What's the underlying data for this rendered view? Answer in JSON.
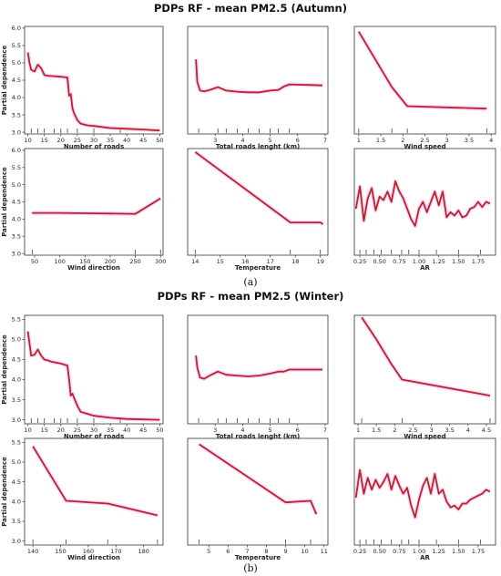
{
  "figure": {
    "title_a": "PDPs RF - mean PM2.5 (Autumn)",
    "title_b": "PDPs RF - mean PM2.5 (Winter)",
    "caption_a": "(a)",
    "caption_b": "(b)",
    "ylabel": "Partial dependence"
  },
  "colors": {
    "line": "#b5281f",
    "halo": "#ff80ff",
    "rug": "#222222"
  },
  "chart_data": [
    {
      "type": "line",
      "group": "a",
      "xlabel": "Number of roads",
      "xlim": [
        9,
        51
      ],
      "ylim": [
        2.95,
        6.05
      ],
      "xticks": [
        10,
        15,
        20,
        25,
        30,
        35,
        40,
        45,
        50
      ],
      "yticks": [
        3.0,
        3.5,
        4.0,
        4.5,
        5.0,
        5.5,
        6.0
      ],
      "x": [
        10,
        10.5,
        11,
        12,
        13,
        14,
        15,
        16,
        17,
        20,
        22,
        22.5,
        23,
        23.5,
        24,
        25,
        26,
        28,
        30,
        35,
        40,
        45,
        50
      ],
      "y": [
        5.3,
        5.0,
        4.8,
        4.75,
        4.95,
        4.85,
        4.65,
        4.63,
        4.62,
        4.6,
        4.58,
        4.05,
        4.1,
        3.7,
        3.55,
        3.35,
        3.25,
        3.2,
        3.18,
        3.12,
        3.1,
        3.08,
        3.05
      ],
      "rug": [
        11,
        13,
        15,
        18,
        20,
        22,
        25,
        30,
        38
      ]
    },
    {
      "type": "line",
      "group": "a",
      "xlabel": "Total roads lenght (km)",
      "xlim": [
        2.0,
        7.1
      ],
      "ylim": [
        2.95,
        6.05
      ],
      "xticks": [
        3,
        4,
        5,
        6,
        7
      ],
      "yticks": [],
      "x": [
        2.3,
        2.35,
        2.45,
        2.6,
        2.8,
        3.1,
        3.4,
        3.8,
        4.2,
        4.6,
        5.0,
        5.3,
        5.5,
        5.7,
        6.0,
        6.5,
        6.9
      ],
      "y": [
        5.1,
        4.45,
        4.2,
        4.18,
        4.22,
        4.3,
        4.2,
        4.17,
        4.15,
        4.15,
        4.2,
        4.22,
        4.32,
        4.38,
        4.37,
        4.36,
        4.35
      ],
      "rug": [
        2.4,
        3.1,
        3.4,
        3.8,
        4.2,
        4.6,
        5.0,
        5.3,
        5.7
      ]
    },
    {
      "type": "line",
      "group": "a",
      "xlabel": "Wind speed",
      "xlim": [
        0.9,
        4.1
      ],
      "ylim": [
        2.95,
        6.05
      ],
      "xticks": [
        1.0,
        1.5,
        2.0,
        2.5,
        3.0,
        3.5,
        4.0
      ],
      "yticks": [],
      "x": [
        1.0,
        1.75,
        2.1,
        3.9
      ],
      "y": [
        5.9,
        4.3,
        3.75,
        3.68
      ],
      "rug": [
        1.0,
        1.75,
        2.1,
        3.9
      ]
    },
    {
      "type": "line",
      "group": "a",
      "xlabel": "Wind direction",
      "xlim": [
        30,
        305
      ],
      "ylim": [
        2.95,
        6.05
      ],
      "xticks": [
        50,
        100,
        150,
        200,
        250,
        300
      ],
      "yticks": [
        3.0,
        3.5,
        4.0,
        4.5,
        5.0,
        5.5,
        6.0
      ],
      "x": [
        45,
        100,
        150,
        200,
        250,
        300
      ],
      "y": [
        4.18,
        4.18,
        4.17,
        4.16,
        4.15,
        4.6
      ],
      "rug": [
        45,
        250,
        300
      ]
    },
    {
      "type": "line",
      "group": "a",
      "xlabel": "Temperature",
      "xlim": [
        13.7,
        19.3
      ],
      "ylim": [
        2.95,
        6.05
      ],
      "xticks": [
        14,
        15,
        16,
        17,
        18,
        19
      ],
      "yticks": [],
      "x": [
        14.0,
        17.8,
        19.0,
        19.1
      ],
      "y": [
        5.95,
        3.9,
        3.9,
        3.85
      ],
      "rug": [
        14.0,
        17.8,
        19.0
      ]
    },
    {
      "type": "line",
      "group": "a",
      "xlabel": "AR",
      "xlim": [
        0.18,
        1.97
      ],
      "ylim": [
        2.95,
        6.05
      ],
      "xticks": [
        0.25,
        0.5,
        0.75,
        1.0,
        1.25,
        1.5,
        1.75
      ],
      "xticklabels": [
        "0.25",
        "0.50",
        "0.75",
        "1.00",
        "1.25",
        "1.50",
        "1.75"
      ],
      "yticks": [],
      "x": [
        0.2,
        0.25,
        0.3,
        0.35,
        0.4,
        0.45,
        0.5,
        0.55,
        0.6,
        0.65,
        0.7,
        0.75,
        0.8,
        0.85,
        0.9,
        0.95,
        1.0,
        1.05,
        1.1,
        1.15,
        1.2,
        1.25,
        1.3,
        1.35,
        1.4,
        1.45,
        1.5,
        1.55,
        1.6,
        1.65,
        1.7,
        1.75,
        1.8,
        1.85,
        1.9
      ],
      "y": [
        4.3,
        4.95,
        3.95,
        4.6,
        4.9,
        4.25,
        4.65,
        4.55,
        4.8,
        4.5,
        5.1,
        4.8,
        4.6,
        4.3,
        4.0,
        3.8,
        4.3,
        4.5,
        4.2,
        4.5,
        4.8,
        4.4,
        4.8,
        4.05,
        4.2,
        4.1,
        4.25,
        4.05,
        4.1,
        4.3,
        4.35,
        4.5,
        4.35,
        4.5,
        4.45
      ],
      "rug": [
        0.25,
        0.33,
        0.43,
        0.52,
        0.65,
        0.78,
        0.87,
        1.0,
        1.22,
        1.5,
        1.78
      ]
    },
    {
      "type": "line",
      "group": "b",
      "xlabel": "Number of roads",
      "xlim": [
        9,
        51
      ],
      "ylim": [
        2.9,
        5.6
      ],
      "xticks": [
        10,
        15,
        20,
        25,
        30,
        35,
        40,
        45,
        50
      ],
      "yticks": [
        3.0,
        3.5,
        4.0,
        4.5,
        5.0,
        5.5
      ],
      "x": [
        10,
        10.5,
        11,
        12,
        13,
        14,
        15,
        16,
        17,
        20,
        22,
        22.5,
        23,
        23.5,
        24,
        25,
        26,
        28,
        30,
        35,
        40,
        45,
        50
      ],
      "y": [
        5.2,
        4.9,
        4.6,
        4.62,
        4.75,
        4.6,
        4.5,
        4.48,
        4.45,
        4.4,
        4.35,
        4.0,
        3.6,
        3.65,
        3.55,
        3.35,
        3.2,
        3.15,
        3.1,
        3.05,
        3.02,
        3.01,
        3.0
      ],
      "rug": [
        11,
        13,
        15,
        18,
        20,
        22,
        25,
        30,
        38
      ]
    },
    {
      "type": "line",
      "group": "b",
      "xlabel": "Total roads lenght (km)",
      "xlim": [
        2.0,
        7.1
      ],
      "ylim": [
        2.9,
        5.6
      ],
      "xticks": [
        3,
        4,
        5,
        6,
        7
      ],
      "yticks": [],
      "x": [
        2.3,
        2.35,
        2.45,
        2.6,
        2.8,
        3.1,
        3.4,
        3.8,
        4.2,
        4.6,
        5.0,
        5.3,
        5.5,
        5.7,
        6.0,
        6.5,
        6.9
      ],
      "y": [
        4.6,
        4.3,
        4.05,
        4.02,
        4.1,
        4.2,
        4.12,
        4.1,
        4.08,
        4.1,
        4.15,
        4.2,
        4.2,
        4.25,
        4.25,
        4.25,
        4.25
      ],
      "rug": [
        2.4,
        3.1,
        3.4,
        3.8,
        4.2,
        4.6,
        5.0,
        5.3,
        5.7
      ]
    },
    {
      "type": "line",
      "group": "b",
      "xlabel": "Wind speed",
      "xlim": [
        0.9,
        4.75
      ],
      "ylim": [
        2.9,
        5.6
      ],
      "xticks": [
        1.0,
        1.5,
        2.0,
        2.5,
        3.0,
        3.5,
        4.0,
        4.5
      ],
      "yticks": [],
      "x": [
        1.1,
        1.5,
        1.9,
        2.2,
        4.6
      ],
      "y": [
        5.55,
        5.0,
        4.4,
        4.0,
        3.6
      ],
      "rug": [
        1.1,
        2.2,
        4.6
      ]
    },
    {
      "type": "line",
      "group": "b",
      "xlabel": "Wind direction",
      "xlim": [
        137,
        187
      ],
      "ylim": [
        2.9,
        5.6
      ],
      "xticks": [
        140,
        150,
        160,
        170,
        180
      ],
      "yticks": [
        3.0,
        3.5,
        4.0,
        4.5,
        5.0,
        5.5
      ],
      "x": [
        140,
        152,
        167,
        185
      ],
      "y": [
        5.4,
        4.02,
        3.95,
        3.65
      ],
      "rug": [
        140,
        152,
        167,
        185
      ]
    },
    {
      "type": "line",
      "group": "b",
      "xlabel": "Temperature",
      "xlim": [
        3.9,
        11.2
      ],
      "ylim": [
        2.9,
        5.6
      ],
      "xticks": [
        5,
        6,
        7,
        8,
        9,
        10,
        11
      ],
      "yticks": [],
      "x": [
        4.5,
        9.0,
        10.3,
        10.6
      ],
      "y": [
        5.45,
        3.98,
        4.02,
        3.68
      ],
      "rug": [
        4.5,
        9.0,
        10.3
      ]
    },
    {
      "type": "line",
      "group": "b",
      "xlabel": "AR",
      "xlim": [
        0.18,
        1.97
      ],
      "ylim": [
        2.9,
        5.6
      ],
      "xticks": [
        0.25,
        0.5,
        0.75,
        1.0,
        1.25,
        1.5,
        1.75
      ],
      "xticklabels": [
        "0.25",
        "0.50",
        "0.75",
        "1.00",
        "1.25",
        "1.50",
        "1.75"
      ],
      "yticks": [],
      "x": [
        0.2,
        0.25,
        0.3,
        0.35,
        0.4,
        0.45,
        0.5,
        0.55,
        0.6,
        0.65,
        0.7,
        0.75,
        0.8,
        0.85,
        0.9,
        0.95,
        1.0,
        1.05,
        1.1,
        1.15,
        1.2,
        1.25,
        1.3,
        1.35,
        1.4,
        1.45,
        1.5,
        1.55,
        1.6,
        1.65,
        1.7,
        1.75,
        1.8,
        1.85,
        1.9
      ],
      "y": [
        4.1,
        4.8,
        4.2,
        4.6,
        4.3,
        4.55,
        4.35,
        4.5,
        4.7,
        4.3,
        4.65,
        4.4,
        4.2,
        4.35,
        3.9,
        3.6,
        4.05,
        4.4,
        4.6,
        4.2,
        4.7,
        4.2,
        4.3,
        4.0,
        3.85,
        3.9,
        3.8,
        3.95,
        3.95,
        4.05,
        4.1,
        4.15,
        4.2,
        4.3,
        4.25
      ],
      "rug": [
        0.25,
        0.33,
        0.43,
        0.52,
        0.65,
        0.78,
        0.87,
        1.0,
        1.22,
        1.5,
        1.78
      ]
    }
  ]
}
